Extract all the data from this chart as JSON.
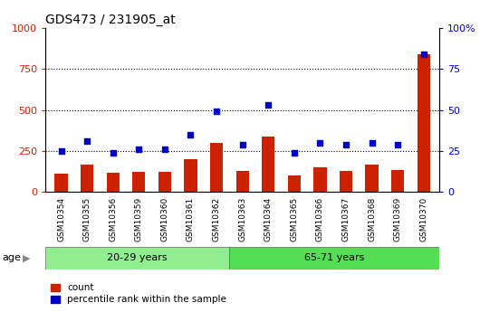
{
  "title": "GDS473 / 231905_at",
  "samples": [
    "GSM10354",
    "GSM10355",
    "GSM10356",
    "GSM10359",
    "GSM10360",
    "GSM10361",
    "GSM10362",
    "GSM10363",
    "GSM10364",
    "GSM10365",
    "GSM10366",
    "GSM10367",
    "GSM10368",
    "GSM10369",
    "GSM10370"
  ],
  "counts": [
    110,
    165,
    115,
    125,
    125,
    200,
    300,
    130,
    340,
    100,
    150,
    130,
    165,
    135,
    840
  ],
  "percentile": [
    25,
    31,
    24,
    26,
    26,
    35,
    49,
    29,
    53,
    24,
    30,
    29,
    30,
    29,
    84
  ],
  "bar_color": "#cc2200",
  "dot_color": "#0000cc",
  "ylim_left": [
    0,
    1000
  ],
  "ylim_right": [
    0,
    100
  ],
  "yticks_left": [
    0,
    250,
    500,
    750,
    1000
  ],
  "yticks_right": [
    0,
    25,
    50,
    75,
    100
  ],
  "group1_label": "20-29 years",
  "group2_label": "65-71 years",
  "group1_count": 7,
  "group2_count": 8,
  "age_label": "age",
  "legend_count": "count",
  "legend_pct": "percentile rank within the sample",
  "group1_color": "#90ee90",
  "group2_color": "#55dd55",
  "bar_width": 0.5,
  "left_axis_color": "#cc2200",
  "right_axis_color": "#0000cc",
  "tick_area_color": "#c0c0c0",
  "gridline_y": [
    250,
    500,
    750
  ]
}
